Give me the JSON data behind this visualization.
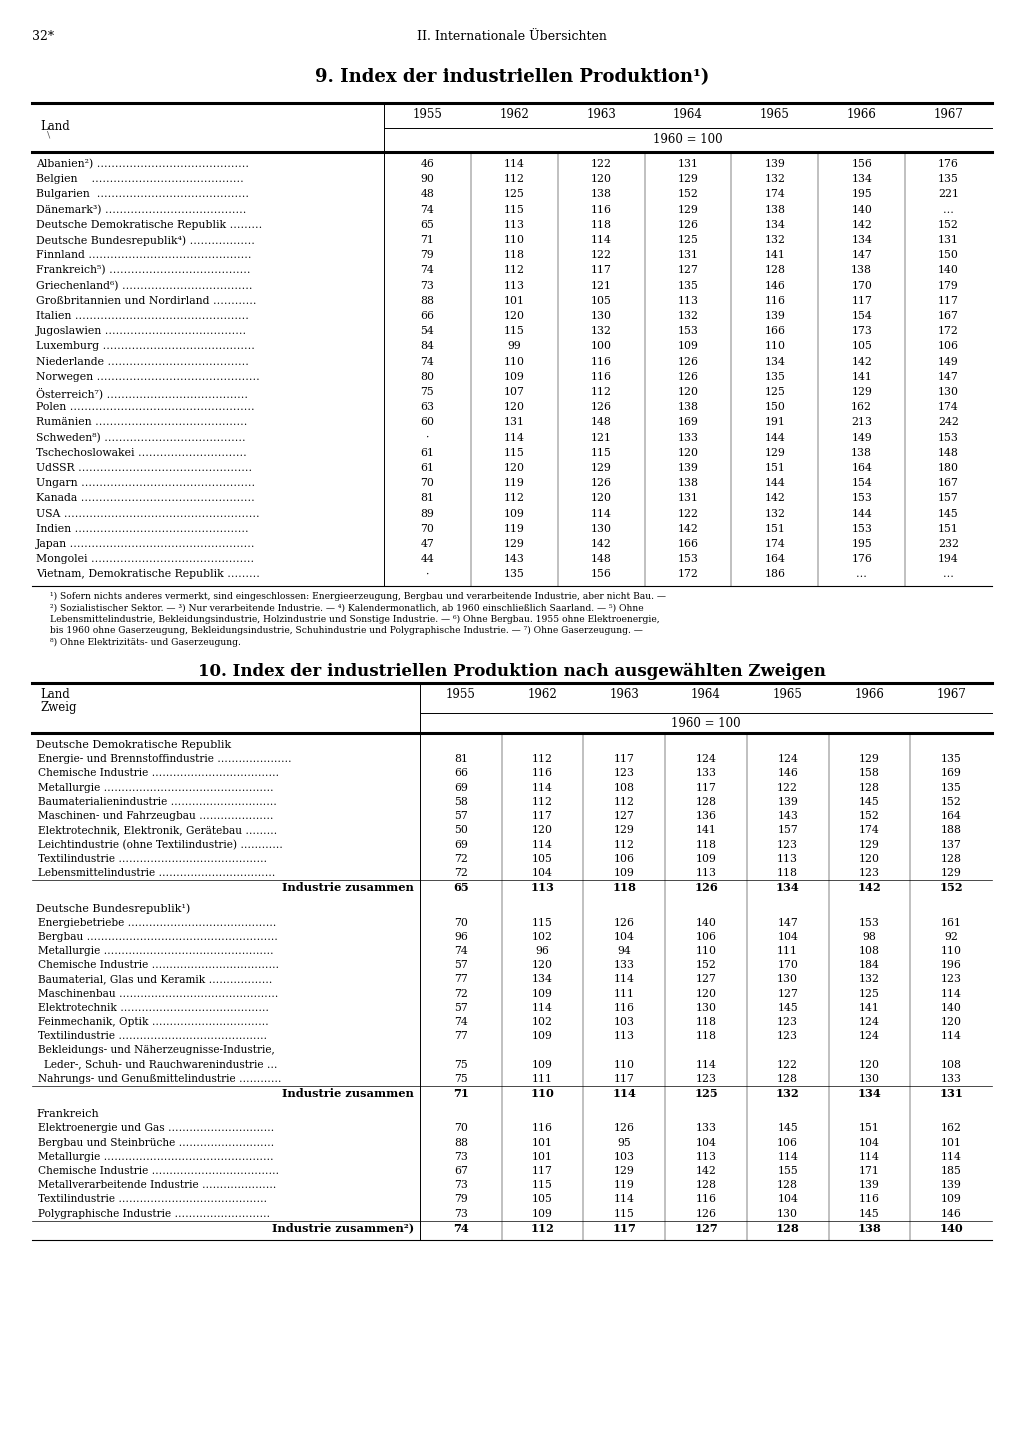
{
  "page_number": "32*",
  "header": "II. Internationale Übersichten",
  "table1_title": "9. Index der industriellen Produktion¹)",
  "table1_col_headers": [
    "Land",
    "1955",
    "1962",
    "1963",
    "1964",
    "1965",
    "1966",
    "1967"
  ],
  "table1_subheader": "1960 = 100",
  "table1_rows": [
    [
      "Albanien²) ……………………………………",
      "46",
      "114",
      "122",
      "131",
      "139",
      "156",
      "176"
    ],
    [
      "Belgien    ……………………………………",
      "90",
      "112",
      "120",
      "129",
      "132",
      "134",
      "135"
    ],
    [
      "Bulgarien  ……………………………………",
      "48",
      "125",
      "138",
      "152",
      "174",
      "195",
      "221"
    ],
    [
      "Dänemark³) …………………………………",
      "74",
      "115",
      "116",
      "129",
      "138",
      "140",
      "…"
    ],
    [
      "Deutsche Demokratische Republik ………",
      "65",
      "113",
      "118",
      "126",
      "134",
      "142",
      "152"
    ],
    [
      "Deutsche Bundesrepublik⁴) ………………",
      "71",
      "110",
      "114",
      "125",
      "132",
      "134",
      "131"
    ],
    [
      "Finnland ………………………………………",
      "79",
      "118",
      "122",
      "131",
      "141",
      "147",
      "150"
    ],
    [
      "Frankreich⁵) …………………………………",
      "74",
      "112",
      "117",
      "127",
      "128",
      "138",
      "140"
    ],
    [
      "Griechenland⁶) ………………………………",
      "73",
      "113",
      "121",
      "135",
      "146",
      "170",
      "179"
    ],
    [
      "Großbritannien und Nordirland …………",
      "88",
      "101",
      "105",
      "113",
      "116",
      "117",
      "117"
    ],
    [
      "Italien …………………………………………",
      "66",
      "120",
      "130",
      "132",
      "139",
      "154",
      "167"
    ],
    [
      "Jugoslawien …………………………………",
      "54",
      "115",
      "132",
      "153",
      "166",
      "173",
      "172"
    ],
    [
      "Luxemburg ……………………………………",
      "84",
      "99",
      "100",
      "109",
      "110",
      "105",
      "106"
    ],
    [
      "Niederlande …………………………………",
      "74",
      "110",
      "116",
      "126",
      "134",
      "142",
      "149"
    ],
    [
      "Norwegen ………………………………………",
      "80",
      "109",
      "116",
      "126",
      "135",
      "141",
      "147"
    ],
    [
      "Österreich⁷) …………………………………",
      "75",
      "107",
      "112",
      "120",
      "125",
      "129",
      "130"
    ],
    [
      "Polen ……………………………………………",
      "63",
      "120",
      "126",
      "138",
      "150",
      "162",
      "174"
    ],
    [
      "Rumänien ……………………………………",
      "60",
      "131",
      "148",
      "169",
      "191",
      "213",
      "242"
    ],
    [
      "Schweden⁸) …………………………………",
      "·",
      "114",
      "121",
      "133",
      "144",
      "149",
      "153"
    ],
    [
      "Tschechoslowakei …………………………",
      "61",
      "115",
      "115",
      "120",
      "129",
      "138",
      "148"
    ],
    [
      "UdSSR …………………………………………",
      "61",
      "120",
      "129",
      "139",
      "151",
      "164",
      "180"
    ],
    [
      "Ungarn …………………………………………",
      "70",
      "119",
      "126",
      "138",
      "144",
      "154",
      "167"
    ],
    [
      "Kanada …………………………………………",
      "81",
      "112",
      "120",
      "131",
      "142",
      "153",
      "157"
    ],
    [
      "USA ………………………………………………",
      "89",
      "109",
      "114",
      "122",
      "132",
      "144",
      "145"
    ],
    [
      "Indien …………………………………………",
      "70",
      "119",
      "130",
      "142",
      "151",
      "153",
      "151"
    ],
    [
      "Japan ……………………………………………",
      "47",
      "129",
      "142",
      "166",
      "174",
      "195",
      "232"
    ],
    [
      "Mongolei ………………………………………",
      "44",
      "143",
      "148",
      "153",
      "164",
      "176",
      "194"
    ],
    [
      "Vietnam, Demokratische Republik ………",
      "·",
      "135",
      "156",
      "172",
      "186",
      "…",
      "…"
    ]
  ],
  "table1_footnotes": [
    "¹) Sofern nichts anderes vermerkt, sind eingeschlossen: Energieerzeugung, Bergbau und verarbeitende Industrie, aber nicht Bau. —",
    "²) Sozialistischer Sektor. — ³) Nur verarbeitende Industrie. — ⁴) Kalendermonatlich, ab 1960 einschließlich Saarland. — ⁵) Ohne",
    "Lebensmittelindustrie, Bekleidungsindustrie, Holzindustrie und Sonstige Industrie. — ⁶) Ohne Bergbau. 1955 ohne Elektroenergie,",
    "bis 1960 ohne Gaserzeugung, Bekleidungsindustrie, Schuhindustrie und Polygraphische Industrie. — ⁷) Ohne Gaserzeugung. —",
    "⁸) Ohne Elektrizitäts- und Gaserzeugung."
  ],
  "table2_title": "10. Index der industriellen Produktion nach ausgewählten Zweigen",
  "table2_subheader": "1960 = 100",
  "table2_sections": [
    {
      "section_header": "Deutsche Demokratische Republik",
      "rows": [
        [
          "Energie- und Brennstoffindustrie …………………",
          "81",
          "112",
          "117",
          "124",
          "124",
          "129",
          "135"
        ],
        [
          "Chemische Industrie ………………………………",
          "66",
          "116",
          "123",
          "133",
          "146",
          "158",
          "169"
        ],
        [
          "Metallurgie …………………………………………",
          "69",
          "114",
          "108",
          "117",
          "122",
          "128",
          "135"
        ],
        [
          "Baumaterialienindustrie …………………………",
          "58",
          "112",
          "112",
          "128",
          "139",
          "145",
          "152"
        ],
        [
          "Maschinen- und Fahrzeugbau …………………",
          "57",
          "117",
          "127",
          "136",
          "143",
          "152",
          "164"
        ],
        [
          "Elektrotechnik, Elektronik, Gerätebau ………",
          "50",
          "120",
          "129",
          "141",
          "157",
          "174",
          "188"
        ],
        [
          "Leichtindustrie (ohne Textilindustrie) …………",
          "69",
          "114",
          "112",
          "118",
          "123",
          "129",
          "137"
        ],
        [
          "Textilindustrie ……………………………………",
          "72",
          "105",
          "106",
          "109",
          "113",
          "120",
          "128"
        ],
        [
          "Lebensmittelindustrie ……………………………",
          "72",
          "104",
          "109",
          "113",
          "118",
          "123",
          "129"
        ]
      ],
      "summary_row": [
        "Industrie zusammen",
        "65",
        "113",
        "118",
        "126",
        "134",
        "142",
        "152"
      ]
    },
    {
      "section_header": "Deutsche Bundesrepublik¹)",
      "rows": [
        [
          "Energiebetriebe ……………………………………",
          "70",
          "115",
          "126",
          "140",
          "147",
          "153",
          "161"
        ],
        [
          "Bergbau ………………………………………………",
          "96",
          "102",
          "104",
          "106",
          "104",
          "98",
          "92"
        ],
        [
          "Metallurgie …………………………………………",
          "74",
          "96",
          "94",
          "110",
          "111",
          "108",
          "110"
        ],
        [
          "Chemische Industrie ………………………………",
          "57",
          "120",
          "133",
          "152",
          "170",
          "184",
          "196"
        ],
        [
          "Baumaterial, Glas und Keramik ………………",
          "77",
          "134",
          "114",
          "127",
          "130",
          "132",
          "123"
        ],
        [
          "Maschinenbau ………………………………………",
          "72",
          "109",
          "111",
          "120",
          "127",
          "125",
          "114"
        ],
        [
          "Elektrotechnik ……………………………………",
          "57",
          "114",
          "116",
          "130",
          "145",
          "141",
          "140"
        ],
        [
          "Feinmechanik, Optik ……………………………",
          "74",
          "102",
          "103",
          "118",
          "123",
          "124",
          "120"
        ],
        [
          "Textilindustrie ……………………………………",
          "77",
          "109",
          "113",
          "118",
          "123",
          "124",
          "114"
        ],
        [
          "Bekleidungs- und Näherzeugnisse-Industrie,",
          "",
          "",
          "",
          "",
          "",
          "",
          ""
        ],
        [
          "  Leder-, Schuh- und Rauchwarenindustrie …",
          "75",
          "109",
          "110",
          "114",
          "122",
          "120",
          "108"
        ],
        [
          "Nahrungs- und Genußmittelindustrie …………",
          "75",
          "111",
          "117",
          "123",
          "128",
          "130",
          "133"
        ]
      ],
      "summary_row": [
        "Industrie zusammen",
        "71",
        "110",
        "114",
        "125",
        "132",
        "134",
        "131"
      ]
    },
    {
      "section_header": "Frankreich",
      "rows": [
        [
          "Elektroenergie und Gas …………………………",
          "70",
          "116",
          "126",
          "133",
          "145",
          "151",
          "162"
        ],
        [
          "Bergbau und Steinbrüche ………………………",
          "88",
          "101",
          "95",
          "104",
          "106",
          "104",
          "101"
        ],
        [
          "Metallurgie …………………………………………",
          "73",
          "101",
          "103",
          "113",
          "114",
          "114",
          "114"
        ],
        [
          "Chemische Industrie ………………………………",
          "67",
          "117",
          "129",
          "142",
          "155",
          "171",
          "185"
        ],
        [
          "Metallverarbeitende Industrie …………………",
          "73",
          "115",
          "119",
          "128",
          "128",
          "139",
          "139"
        ],
        [
          "Textilindustrie ……………………………………",
          "79",
          "105",
          "114",
          "116",
          "104",
          "116",
          "109"
        ],
        [
          "Polygraphische Industrie ………………………",
          "73",
          "109",
          "115",
          "126",
          "130",
          "145",
          "146"
        ]
      ],
      "summary_row": [
        "Industrie zusammen²)",
        "74",
        "112",
        "117",
        "127",
        "128",
        "138",
        "140"
      ]
    }
  ],
  "bg_color": "#ffffff",
  "years": [
    "1955",
    "1962",
    "1963",
    "1964",
    "1965",
    "1966",
    "1967"
  ]
}
